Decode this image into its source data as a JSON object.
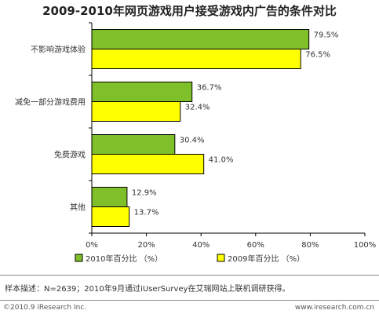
{
  "chart_data": {
    "type": "bar",
    "orientation": "horizontal",
    "title": "2009-2010年网页游戏用户接受游戏内广告的条件对比",
    "categories": [
      "不影响游戏体验",
      "减免一部分游戏费用",
      "免费游戏",
      "其他"
    ],
    "series": [
      {
        "name": "2010年百分比 （%）",
        "values": [
          79.5,
          36.7,
          30.4,
          12.9
        ],
        "value_labels": [
          "79.5%",
          "36.7%",
          "30.4%",
          "12.9%"
        ],
        "color": "#7fbf2a"
      },
      {
        "name": "2009年百分比 （%）",
        "values": [
          76.5,
          32.4,
          41.0,
          13.7
        ],
        "value_labels": [
          "76.5%",
          "32.4%",
          "41.0%",
          "13.7%"
        ],
        "color": "#ffff00"
      }
    ],
    "xlim": [
      0,
      100
    ],
    "x_ticks": [
      "0%",
      "20%",
      "40%",
      "60%",
      "80%",
      "100%"
    ],
    "grid": false,
    "legend_position": "bottom"
  },
  "note": "样本描述：N=2639；2010年9月通过iUserSurvey在艾瑞网站上联机调研获得。",
  "footer": {
    "left": "©2010.9 iResearch Inc.",
    "right": "www.iresearch.com.cn"
  },
  "colors": {
    "bar_2010": "#7fbf2a",
    "bar_2009": "#ffff00",
    "bar_stroke": "#000000"
  }
}
